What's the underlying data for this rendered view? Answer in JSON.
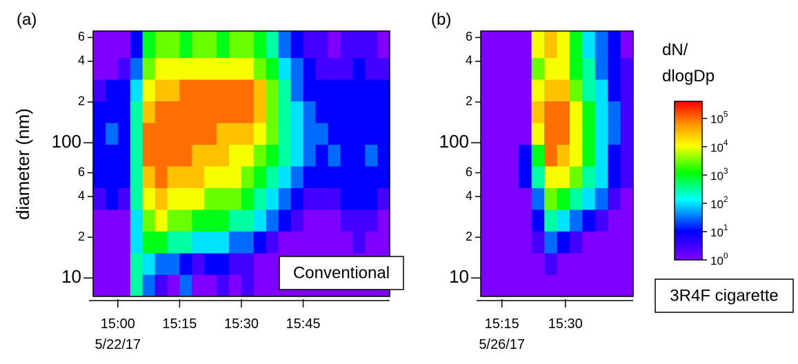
{
  "chart_data": [
    {
      "type": "heatmap",
      "panel": "(a)",
      "ylabel": "diameter (nm)",
      "annotation": "Conventional",
      "date": "5/22/17",
      "ylog": true,
      "xlim": [
        894,
        966
      ],
      "ylim": [
        7.3,
        670
      ],
      "xticks": [
        {
          "value": 900,
          "label": "15:00"
        },
        {
          "value": 915,
          "label": "15:15"
        },
        {
          "value": 930,
          "label": "15:30"
        },
        {
          "value": 945,
          "label": "15:45"
        }
      ],
      "yticks": [
        10,
        {
          "value": 20,
          "label": "2"
        },
        {
          "value": 40,
          "label": "4"
        },
        {
          "value": 60,
          "label": "6"
        },
        100,
        {
          "value": 200,
          "label": "2"
        },
        {
          "value": 400,
          "label": "4"
        },
        {
          "value": 600,
          "label": "6"
        }
      ],
      "x_bins": [
        894,
        897,
        900,
        903,
        906,
        909,
        912,
        915,
        918,
        921,
        924,
        927,
        930,
        933,
        936,
        939,
        942,
        945,
        948,
        951,
        954,
        957,
        960,
        963,
        966
      ],
      "y_bins": [
        7.3,
        10.6,
        15.3,
        22.2,
        32.1,
        46.4,
        67.2,
        97.2,
        140.6,
        203.4,
        294.2,
        425.6,
        670
      ],
      "z": [
        [
          1,
          1,
          1,
          1,
          3,
          10,
          10,
          10,
          10,
          3,
          1,
          1
        ],
        [
          1,
          1,
          1,
          1,
          10,
          10,
          10,
          30,
          10,
          10,
          1,
          1
        ],
        [
          1,
          1,
          1,
          1,
          3,
          10,
          10,
          10,
          10,
          10,
          3,
          1
        ],
        [
          300,
          300,
          100,
          100,
          300,
          300,
          300,
          300,
          300,
          100,
          30,
          10
        ],
        [
          30,
          100,
          1000,
          3000,
          10000,
          30000,
          100000,
          100000,
          30000,
          10000,
          3000,
          1000
        ],
        [
          3,
          30,
          1000,
          10000,
          30000,
          100000,
          100000,
          100000,
          100000,
          30000,
          10000,
          3000
        ],
        [
          1,
          30,
          300,
          3000,
          10000,
          30000,
          100000,
          100000,
          100000,
          30000,
          10000,
          3000
        ],
        [
          30,
          10,
          300,
          3000,
          10000,
          30000,
          100000,
          100000,
          100000,
          100000,
          10000,
          1000
        ],
        [
          1,
          3,
          100,
          1000,
          10000,
          30000,
          30000,
          100000,
          100000,
          100000,
          10000,
          3000
        ],
        [
          1,
          10,
          100,
          1000,
          3000,
          10000,
          30000,
          100000,
          100000,
          100000,
          10000,
          3000
        ],
        [
          3,
          10,
          100,
          1000,
          3000,
          10000,
          30000,
          30000,
          100000,
          100000,
          10000,
          1000
        ],
        [
          1,
          3,
          30,
          300,
          3000,
          10000,
          10000,
          30000,
          100000,
          100000,
          10000,
          3000
        ],
        [
          3,
          3,
          30,
          300,
          1000,
          3000,
          10000,
          30000,
          100000,
          100000,
          10000,
          3000
        ],
        [
          1,
          1,
          10,
          100,
          300,
          1000,
          3000,
          10000,
          30000,
          30000,
          3000,
          1000
        ],
        [
          1,
          1,
          3,
          30,
          100,
          300,
          1000,
          3000,
          3000,
          3000,
          1000,
          300
        ],
        [
          1,
          1,
          1,
          10,
          30,
          100,
          300,
          300,
          300,
          300,
          100,
          30
        ],
        [
          1,
          1,
          1,
          3,
          10,
          30,
          100,
          100,
          100,
          30,
          30,
          10
        ],
        [
          1,
          1,
          1,
          1,
          3,
          10,
          30,
          30,
          30,
          10,
          10,
          3
        ],
        [
          1,
          1,
          1,
          1,
          3,
          10,
          10,
          30,
          10,
          10,
          3,
          3
        ],
        [
          1,
          1,
          1,
          1,
          3,
          10,
          30,
          10,
          10,
          10,
          3,
          1
        ],
        [
          1,
          1,
          1,
          3,
          10,
          10,
          10,
          10,
          10,
          10,
          3,
          3
        ],
        [
          1,
          1,
          3,
          3,
          10,
          10,
          10,
          10,
          10,
          10,
          10,
          3
        ],
        [
          1,
          1,
          1,
          3,
          10,
          10,
          30,
          10,
          10,
          10,
          3,
          3
        ],
        [
          1,
          1,
          1,
          1,
          3,
          10,
          10,
          10,
          10,
          10,
          3,
          1
        ]
      ]
    },
    {
      "type": "heatmap",
      "panel": "(b)",
      "annotation": "3R4F cigarette",
      "date": "5/26/17",
      "ylog": true,
      "xlim": [
        910,
        946
      ],
      "ylim": [
        7.3,
        670
      ],
      "xticks": [
        {
          "value": 915,
          "label": "15:15"
        },
        {
          "value": 930,
          "label": "15:30"
        }
      ],
      "yticks": [
        10,
        {
          "value": 20,
          "label": "2"
        },
        {
          "value": 40,
          "label": "4"
        },
        {
          "value": 60,
          "label": "6"
        },
        100,
        {
          "value": 200,
          "label": "2"
        },
        {
          "value": 400,
          "label": "4"
        },
        {
          "value": 600,
          "label": "6"
        }
      ],
      "x_bins": [
        910,
        913,
        916,
        919,
        922,
        925,
        928,
        931,
        934,
        937,
        940,
        943,
        946
      ],
      "y_bins": [
        7.3,
        10.6,
        15.3,
        22.2,
        32.1,
        46.4,
        67.2,
        97.2,
        140.6,
        203.4,
        294.2,
        425.6,
        670
      ],
      "z": [
        [
          1,
          1,
          1,
          1,
          1,
          1,
          1,
          1,
          1,
          1,
          1,
          1
        ],
        [
          1,
          1,
          1,
          1,
          1,
          1,
          1,
          1,
          1,
          1,
          1,
          1
        ],
        [
          1,
          1,
          1,
          1,
          1,
          1,
          1,
          1,
          1,
          1,
          1,
          1
        ],
        [
          1,
          1,
          1,
          1,
          1,
          10,
          10,
          1,
          1,
          1,
          1,
          1
        ],
        [
          1,
          1,
          3,
          10,
          30,
          300,
          1000,
          10000,
          30000,
          10000,
          3000,
          10000
        ],
        [
          1,
          3,
          30,
          300,
          3000,
          10000,
          100000,
          100000,
          100000,
          30000,
          10000,
          30000
        ],
        [
          1,
          1,
          10,
          100,
          1000,
          10000,
          30000,
          100000,
          100000,
          30000,
          10000,
          10000
        ],
        [
          1,
          1,
          3,
          30,
          300,
          3000,
          10000,
          10000,
          10000,
          3000,
          1000,
          1000
        ],
        [
          1,
          1,
          1,
          10,
          100,
          300,
          1000,
          1000,
          1000,
          300,
          300,
          100
        ],
        [
          1,
          1,
          1,
          3,
          30,
          100,
          100,
          100,
          100,
          100,
          30,
          30
        ],
        [
          1,
          1,
          1,
          1,
          3,
          10,
          10,
          30,
          30,
          10,
          10,
          10
        ],
        [
          1,
          1,
          1,
          1,
          1,
          3,
          3,
          3,
          3,
          3,
          3,
          1
        ]
      ],
      "colorbar_title": [
        "dN/",
        "dlogDp"
      ],
      "clim": [
        1,
        400000
      ],
      "cticks": [
        {
          "value": 1,
          "label": "10",
          "exponent": "0"
        },
        {
          "value": 10,
          "label": "10",
          "exponent": "1"
        },
        {
          "value": 100,
          "label": "10",
          "exponent": "2"
        },
        {
          "value": 1000,
          "label": "10",
          "exponent": "3"
        },
        {
          "value": 10000,
          "label": "10",
          "exponent": "4"
        },
        {
          "value": 100000,
          "label": "10",
          "exponent": "5"
        }
      ]
    }
  ]
}
